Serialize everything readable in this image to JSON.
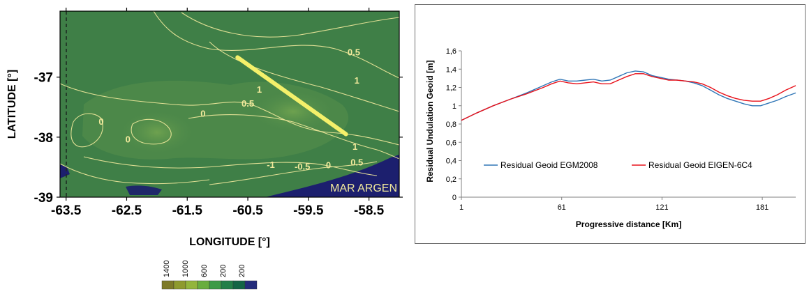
{
  "colors": {
    "egm2008": "#2e75b6",
    "eigen6c4": "#e8111a",
    "profile_line": "#f4f06a",
    "contour": "#f2ea9c",
    "sea": "#1c1f6e"
  },
  "chart_data": [
    {
      "type": "map",
      "xlabel": "LONGITUDE [°]",
      "ylabel": "LATITUDE [°]",
      "xlim": [
        -63.6,
        -58.0
      ],
      "ylim": [
        -39.0,
        -35.9
      ],
      "x_ticks": [
        -63.5,
        -62.5,
        -61.5,
        -60.5,
        -59.5,
        -58.5
      ],
      "x_tick_labels": [
        "-63.5",
        "-62.5",
        "-61.5",
        "-60.5",
        "-59.5",
        "-58.5"
      ],
      "y_ticks": [
        -37,
        -38,
        -39
      ],
      "y_tick_labels": [
        "-37",
        "-38",
        "-39"
      ],
      "sea_label": "MAR ARGEN",
      "profile_line": {
        "start": [
          -60.67,
          -36.67
        ],
        "end": [
          -58.88,
          -37.95
        ]
      },
      "contour_labels": [
        {
          "text": "0.5",
          "lon": -58.75,
          "lat": -36.6
        },
        {
          "text": "1",
          "lon": -58.7,
          "lat": -37.07
        },
        {
          "text": "1",
          "lon": -60.31,
          "lat": -37.22
        },
        {
          "text": "0.5",
          "lon": -60.5,
          "lat": -37.45
        },
        {
          "text": "0",
          "lon": -61.24,
          "lat": -37.62
        },
        {
          "text": "0",
          "lon": -62.92,
          "lat": -37.75
        },
        {
          "text": "0",
          "lon": -62.48,
          "lat": -38.05
        },
        {
          "text": "1",
          "lon": -58.73,
          "lat": -38.17
        },
        {
          "text": "0.5",
          "lon": -58.7,
          "lat": -38.43
        },
        {
          "text": "-1",
          "lon": -60.12,
          "lat": -38.47
        },
        {
          "text": "-0.5",
          "lon": -59.6,
          "lat": -38.5
        },
        {
          "text": "0",
          "lon": -59.17,
          "lat": -38.48
        }
      ],
      "colorbar": {
        "labels": [
          "1400",
          "1000",
          "600",
          "200",
          "200"
        ],
        "colors": [
          "#7d7a2a",
          "#8e9a2f",
          "#93b53c",
          "#69ad3e",
          "#3d9a47",
          "#237f48",
          "#136445",
          "#232b7a"
        ]
      }
    },
    {
      "type": "line",
      "xlabel": "Progressive distance [Km]",
      "ylabel": "Residual Undulation Geoid [m]",
      "xlim": [
        1,
        201
      ],
      "ylim": [
        0,
        1.6
      ],
      "x_ticks": [
        1,
        61,
        121,
        181
      ],
      "y_ticks": [
        0,
        0.2,
        0.4,
        0.6,
        0.8,
        1,
        1.2,
        1.4,
        1.6
      ],
      "y_tick_labels": [
        "0",
        "0,2",
        "0,4",
        "0,6",
        "0,8",
        "1",
        "1,2",
        "1,4",
        "1,6"
      ],
      "x": [
        1,
        10,
        20,
        30,
        40,
        50,
        55,
        60,
        65,
        70,
        75,
        80,
        85,
        90,
        95,
        100,
        105,
        110,
        115,
        120,
        125,
        130,
        135,
        140,
        145,
        150,
        155,
        160,
        165,
        170,
        175,
        180,
        185,
        190,
        195,
        201
      ],
      "series": [
        {
          "name": "Residual Geoid EGM2008",
          "color": "#2e75b6",
          "values": [
            0.84,
            0.92,
            1.0,
            1.07,
            1.14,
            1.22,
            1.26,
            1.29,
            1.27,
            1.27,
            1.28,
            1.29,
            1.27,
            1.28,
            1.32,
            1.36,
            1.38,
            1.37,
            1.33,
            1.31,
            1.29,
            1.28,
            1.27,
            1.25,
            1.22,
            1.17,
            1.12,
            1.08,
            1.05,
            1.02,
            1.0,
            1.0,
            1.03,
            1.06,
            1.1,
            1.14
          ]
        },
        {
          "name": "Residual Geoid EIGEN-6C4",
          "color": "#e8111a",
          "values": [
            0.84,
            0.92,
            1.0,
            1.07,
            1.13,
            1.2,
            1.24,
            1.27,
            1.25,
            1.24,
            1.25,
            1.26,
            1.24,
            1.24,
            1.28,
            1.32,
            1.35,
            1.35,
            1.32,
            1.3,
            1.28,
            1.28,
            1.27,
            1.26,
            1.24,
            1.2,
            1.15,
            1.11,
            1.08,
            1.06,
            1.05,
            1.05,
            1.08,
            1.12,
            1.17,
            1.22
          ]
        }
      ],
      "legend": "bottom"
    }
  ]
}
